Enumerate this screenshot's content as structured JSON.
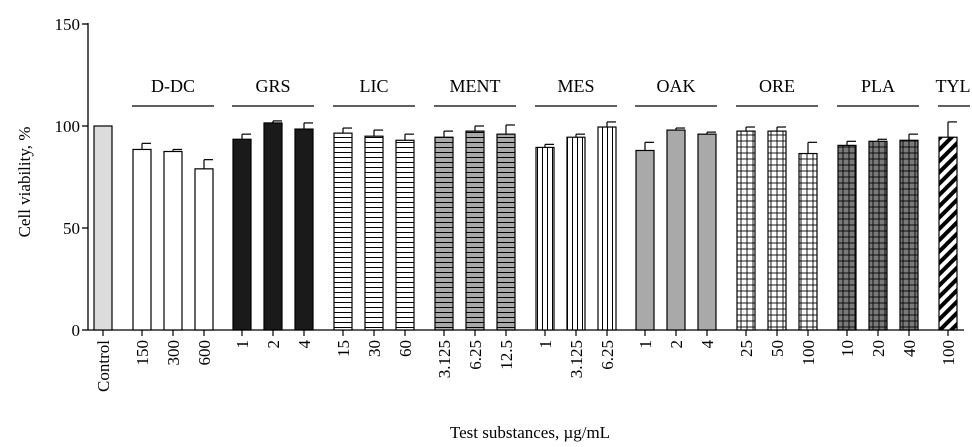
{
  "chart_data": {
    "type": "bar",
    "xlabel": "Test substances, µg/mL",
    "ylabel": "Cell viability, %",
    "ylim": [
      0,
      150
    ],
    "yticks": [
      0,
      50,
      100,
      150
    ],
    "grid": false,
    "control": {
      "label": "Control",
      "value": 100,
      "error": 0,
      "pattern": "light-gray"
    },
    "groups": [
      {
        "name": "D-DC",
        "pattern": "white",
        "bars": [
          {
            "label": "150",
            "value": 88.5,
            "error": 3
          },
          {
            "label": "300",
            "value": 87.5,
            "error": 1
          },
          {
            "label": "600",
            "value": 79,
            "error": 4.5
          }
        ]
      },
      {
        "name": "GRS",
        "pattern": "black",
        "bars": [
          {
            "label": "1",
            "value": 93.5,
            "error": 2.5
          },
          {
            "label": "2",
            "value": 101.5,
            "error": 1
          },
          {
            "label": "4",
            "value": 98.5,
            "error": 3
          }
        ]
      },
      {
        "name": "LIC",
        "pattern": "horizontal-lines",
        "bars": [
          {
            "label": "15",
            "value": 96.5,
            "error": 2.5
          },
          {
            "label": "30",
            "value": 95,
            "error": 3
          },
          {
            "label": "60",
            "value": 93,
            "error": 3
          }
        ]
      },
      {
        "name": "MENT",
        "pattern": "gray-horizontal-lines",
        "bars": [
          {
            "label": "3.125",
            "value": 94.5,
            "error": 3
          },
          {
            "label": "6.25",
            "value": 97.5,
            "error": 2.5
          },
          {
            "label": "12.5",
            "value": 96,
            "error": 4.5
          }
        ]
      },
      {
        "name": "MES",
        "pattern": "vertical-lines",
        "bars": [
          {
            "label": "1",
            "value": 89.5,
            "error": 1.5
          },
          {
            "label": "3.125",
            "value": 94.5,
            "error": 1.5
          },
          {
            "label": "6.25",
            "value": 99.5,
            "error": 2.5
          }
        ]
      },
      {
        "name": "OAK",
        "pattern": "gray",
        "bars": [
          {
            "label": "1",
            "value": 88,
            "error": 4
          },
          {
            "label": "2",
            "value": 98,
            "error": 1
          },
          {
            "label": "4",
            "value": 96,
            "error": 1
          }
        ]
      },
      {
        "name": "ORE",
        "pattern": "grid",
        "bars": [
          {
            "label": "25",
            "value": 97.5,
            "error": 2
          },
          {
            "label": "50",
            "value": 97.5,
            "error": 2
          },
          {
            "label": "100",
            "value": 86.5,
            "error": 5.5
          }
        ]
      },
      {
        "name": "PLA",
        "pattern": "dark-grid",
        "bars": [
          {
            "label": "10",
            "value": 90.5,
            "error": 2
          },
          {
            "label": "20",
            "value": 92.5,
            "error": 1
          },
          {
            "label": "40",
            "value": 93,
            "error": 3
          }
        ]
      },
      {
        "name": "TYL",
        "pattern": "diagonal",
        "bars": [
          {
            "label": "100",
            "value": 94.5,
            "error": 7.5
          }
        ]
      }
    ]
  }
}
